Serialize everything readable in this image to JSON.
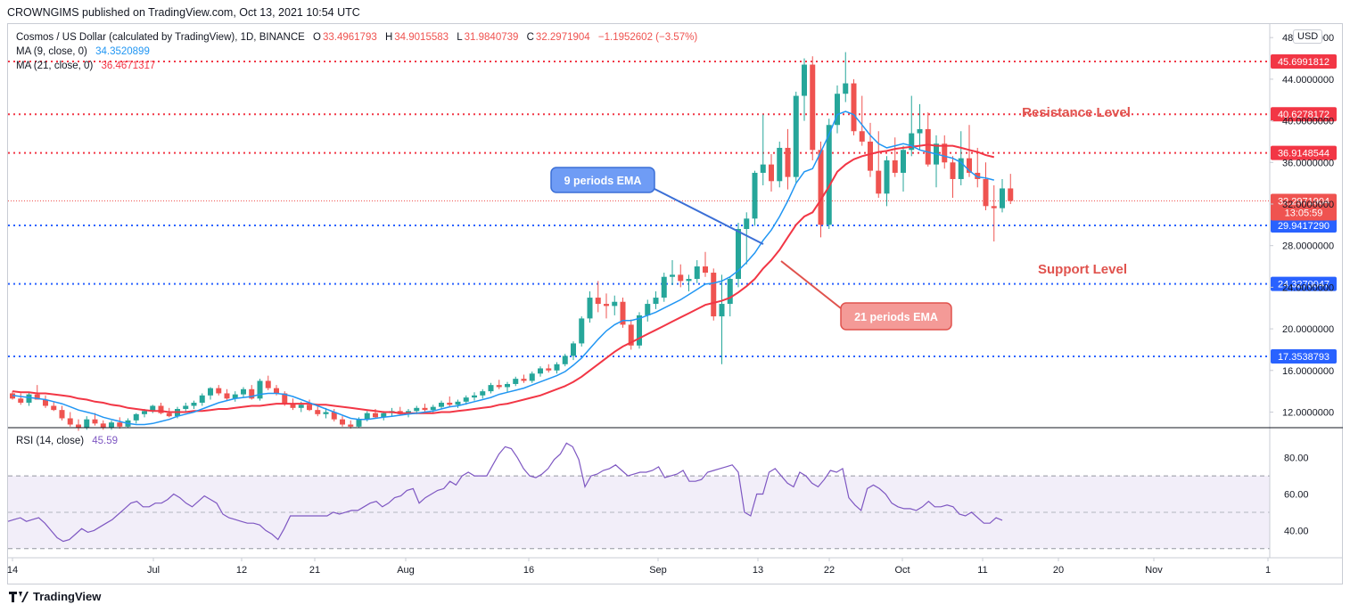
{
  "header": {
    "published": "CROWNGIMS published on TradingView.com, Oct 13, 2021 10:54 UTC"
  },
  "legend": {
    "symbol": "Cosmos / US Dollar (calculated by TradingView), 1D, BINANCE",
    "o_label": "O",
    "o_value": "33.4961793",
    "h_label": "H",
    "h_value": "34.9015583",
    "l_label": "L",
    "l_value": "31.9840739",
    "c_label": "C",
    "c_value": "32.2971904",
    "change": "−1.1952602 (−3.57%)",
    "ma9_label": "MA (9, close, 0)",
    "ma9_value": "34.3520899",
    "ma21_label": "MA (21, close, 0)",
    "ma21_value": "36.4671317",
    "rsi_label": "RSI (14, close)",
    "rsi_value": "45.59"
  },
  "currency": "USD",
  "annotations": {
    "resistance": "Resistance Level",
    "support": "Support Level",
    "ema9": "9 periods EMA",
    "ema21": "21 periods EMA"
  },
  "price_tags": {
    "last": "32.2971904",
    "countdown": "13:05:59"
  },
  "brand": "TradingView",
  "colors": {
    "up": "#26a69a",
    "down": "#ef5350",
    "ma9": "#2196f3",
    "ma21": "#f23645",
    "rsi": "#7e57c2",
    "rsi_band": "#ede7f6",
    "resistance": "#f23645",
    "support": "#2962ff"
  },
  "chart_data": [
    {
      "type": "candlestick",
      "title": "Cosmos / US Dollar (calculated by TradingView), 1D, BINANCE",
      "x_ticks": [
        "14",
        "Jul",
        "12",
        "21",
        "Aug",
        "16",
        "Sep",
        "13",
        "22",
        "Oct",
        "11",
        "20",
        "Nov",
        "1"
      ],
      "y_ticks": [
        "48.0000000",
        "44.0000000",
        "40.0000000",
        "36.0000000",
        "32.0000000",
        "28.0000000",
        "24.0000000",
        "20.0000000",
        "16.0000000",
        "12.0000000"
      ],
      "ylim": [
        10.5,
        49.3
      ],
      "horizontal_levels": [
        {
          "value": 45.6991812,
          "label": "45.6991812",
          "color": "#f23645",
          "style": "dotted"
        },
        {
          "value": 40.6278172,
          "label": "40.6278172",
          "color": "#f23645",
          "style": "dotted"
        },
        {
          "value": 36.9148544,
          "label": "36.9148544",
          "color": "#f23645",
          "style": "dotted"
        },
        {
          "value": 29.941729,
          "label": "29.9417290",
          "color": "#2962ff",
          "style": "dotted"
        },
        {
          "value": 24.3270047,
          "label": "24.3270047",
          "color": "#2962ff",
          "style": "dotted"
        },
        {
          "value": 17.3538793,
          "label": "17.3538793",
          "color": "#2962ff",
          "style": "dotted"
        }
      ],
      "last_price": 32.2971904,
      "candles": [
        [
          13.8,
          14.0,
          13.2,
          13.3
        ],
        [
          13.3,
          13.8,
          12.7,
          12.9
        ],
        [
          12.9,
          13.9,
          12.6,
          13.7
        ],
        [
          13.7,
          14.6,
          13.4,
          13.2
        ],
        [
          13.2,
          13.6,
          12.4,
          12.6
        ],
        [
          12.6,
          13.0,
          12.1,
          12.2
        ],
        [
          12.2,
          12.6,
          11.2,
          11.4
        ],
        [
          11.4,
          12.0,
          10.6,
          10.8
        ],
        [
          10.8,
          11.3,
          10.2,
          10.5
        ],
        [
          10.5,
          11.6,
          10.3,
          11.3
        ],
        [
          11.3,
          11.9,
          10.7,
          10.9
        ],
        [
          10.9,
          11.2,
          10.3,
          10.5
        ],
        [
          10.5,
          11.2,
          10.3,
          11.0
        ],
        [
          11.0,
          11.5,
          10.4,
          10.6
        ],
        [
          10.6,
          11.4,
          10.5,
          11.2
        ],
        [
          11.2,
          11.9,
          10.9,
          11.8
        ],
        [
          11.8,
          12.3,
          11.5,
          12.1
        ],
        [
          12.1,
          12.7,
          11.9,
          12.6
        ],
        [
          12.6,
          12.9,
          11.8,
          11.9
        ],
        [
          11.9,
          12.4,
          11.5,
          11.6
        ],
        [
          11.6,
          12.5,
          11.4,
          12.3
        ],
        [
          12.3,
          12.9,
          12.0,
          12.6
        ],
        [
          12.6,
          13.1,
          12.3,
          12.9
        ],
        [
          12.9,
          13.8,
          12.6,
          13.6
        ],
        [
          13.6,
          14.4,
          13.2,
          14.3
        ],
        [
          14.3,
          14.6,
          13.6,
          13.8
        ],
        [
          13.8,
          14.2,
          13.1,
          13.3
        ],
        [
          13.3,
          14.0,
          13.0,
          13.7
        ],
        [
          13.7,
          14.4,
          13.4,
          14.2
        ],
        [
          14.2,
          14.6,
          13.2,
          13.3
        ],
        [
          13.3,
          15.2,
          13.1,
          15.0
        ],
        [
          15.0,
          15.5,
          14.1,
          14.3
        ],
        [
          14.3,
          14.6,
          13.6,
          13.8
        ],
        [
          13.8,
          14.0,
          12.6,
          12.8
        ],
        [
          12.8,
          13.3,
          12.2,
          12.4
        ],
        [
          12.4,
          13.0,
          12.0,
          12.7
        ],
        [
          12.7,
          13.2,
          12.1,
          12.2
        ],
        [
          12.2,
          12.6,
          11.6,
          11.8
        ],
        [
          11.8,
          12.4,
          11.4,
          12.0
        ],
        [
          12.0,
          12.3,
          11.1,
          11.3
        ],
        [
          11.3,
          11.6,
          10.6,
          10.8
        ],
        [
          10.8,
          11.2,
          10.4,
          10.6
        ],
        [
          10.6,
          11.5,
          10.5,
          11.3
        ],
        [
          11.3,
          12.1,
          11.1,
          11.9
        ],
        [
          11.9,
          12.3,
          11.4,
          11.5
        ],
        [
          11.5,
          12.1,
          11.2,
          11.9
        ],
        [
          11.9,
          12.4,
          11.6,
          12.1
        ],
        [
          12.1,
          12.5,
          11.7,
          11.8
        ],
        [
          11.8,
          12.3,
          11.5,
          12.1
        ],
        [
          12.1,
          12.6,
          11.8,
          12.4
        ],
        [
          12.4,
          12.8,
          12.0,
          12.2
        ],
        [
          12.2,
          12.7,
          11.9,
          12.5
        ],
        [
          12.5,
          13.1,
          12.3,
          12.9
        ],
        [
          12.9,
          13.5,
          12.5,
          12.7
        ],
        [
          12.7,
          13.2,
          12.4,
          13.0
        ],
        [
          13.0,
          13.6,
          12.7,
          13.4
        ],
        [
          13.4,
          13.9,
          13.1,
          13.6
        ],
        [
          13.6,
          14.2,
          13.3,
          14.0
        ],
        [
          14.0,
          14.8,
          13.8,
          14.6
        ],
        [
          14.6,
          15.1,
          14.2,
          14.4
        ],
        [
          14.4,
          14.9,
          13.9,
          14.7
        ],
        [
          14.7,
          15.4,
          14.5,
          15.2
        ],
        [
          15.2,
          15.6,
          14.8,
          15.0
        ],
        [
          15.0,
          15.9,
          14.8,
          15.7
        ],
        [
          15.7,
          16.4,
          15.4,
          16.2
        ],
        [
          16.2,
          16.6,
          15.8,
          16.0
        ],
        [
          16.0,
          16.8,
          15.7,
          16.6
        ],
        [
          16.6,
          17.6,
          16.4,
          17.4
        ],
        [
          17.4,
          18.8,
          17.0,
          18.6
        ],
        [
          18.6,
          21.2,
          18.3,
          21.0
        ],
        [
          21.0,
          23.6,
          20.6,
          23.0
        ],
        [
          23.0,
          24.6,
          21.6,
          22.4
        ],
        [
          22.4,
          23.4,
          21.0,
          22.2
        ],
        [
          22.2,
          23.2,
          21.3,
          22.6
        ],
        [
          22.6,
          23.0,
          20.1,
          20.4
        ],
        [
          20.4,
          20.9,
          18.0,
          18.4
        ],
        [
          18.4,
          21.6,
          18.1,
          21.3
        ],
        [
          21.3,
          22.8,
          20.7,
          22.4
        ],
        [
          22.4,
          23.6,
          21.9,
          23.0
        ],
        [
          23.0,
          25.4,
          22.6,
          25.0
        ],
        [
          25.0,
          26.6,
          24.2,
          25.2
        ],
        [
          25.2,
          26.2,
          24.0,
          24.6
        ],
        [
          24.6,
          25.2,
          23.6,
          24.8
        ],
        [
          24.8,
          26.6,
          24.4,
          26.0
        ],
        [
          26.0,
          27.4,
          25.0,
          25.4
        ],
        [
          25.4,
          25.8,
          20.8,
          21.2
        ],
        [
          21.2,
          25.2,
          16.6,
          22.4
        ],
        [
          22.4,
          25.0,
          21.2,
          24.8
        ],
        [
          24.8,
          30.2,
          24.0,
          29.6
        ],
        [
          29.6,
          31.2,
          26.2,
          30.6
        ],
        [
          30.6,
          35.2,
          29.9,
          35.0
        ],
        [
          35.0,
          40.6,
          33.8,
          35.8
        ],
        [
          35.8,
          36.8,
          33.2,
          34.2
        ],
        [
          34.2,
          38.0,
          33.6,
          37.4
        ],
        [
          37.4,
          39.2,
          33.4,
          34.6
        ],
        [
          34.6,
          42.8,
          34.0,
          42.4
        ],
        [
          42.4,
          46.0,
          40.0,
          45.4
        ],
        [
          45.4,
          46.2,
          36.2,
          37.2
        ],
        [
          37.2,
          38.0,
          28.8,
          30.0
        ],
        [
          30.0,
          40.2,
          29.6,
          39.6
        ],
        [
          39.6,
          43.4,
          38.8,
          42.6
        ],
        [
          42.6,
          46.6,
          41.8,
          43.6
        ],
        [
          43.6,
          44.0,
          38.6,
          39.0
        ],
        [
          39.0,
          42.4,
          37.6,
          38.0
        ],
        [
          38.0,
          39.8,
          34.6,
          35.2
        ],
        [
          35.2,
          39.0,
          32.6,
          33.0
        ],
        [
          33.0,
          36.6,
          31.8,
          36.2
        ],
        [
          36.2,
          38.4,
          34.6,
          35.0
        ],
        [
          35.0,
          37.6,
          33.2,
          37.2
        ],
        [
          37.2,
          42.4,
          36.6,
          38.8
        ],
        [
          38.8,
          41.6,
          37.2,
          39.2
        ],
        [
          39.2,
          40.8,
          35.6,
          35.8
        ],
        [
          35.8,
          38.6,
          33.6,
          37.8
        ],
        [
          37.8,
          38.6,
          35.4,
          36.0
        ],
        [
          36.0,
          36.6,
          32.6,
          34.4
        ],
        [
          34.4,
          39.0,
          33.8,
          36.4
        ],
        [
          36.4,
          39.6,
          34.6,
          35.0
        ],
        [
          35.0,
          37.4,
          33.6,
          34.4
        ],
        [
          34.4,
          36.0,
          31.4,
          31.8
        ],
        [
          31.8,
          33.8,
          28.4,
          31.6
        ],
        [
          31.6,
          34.4,
          31.2,
          33.5
        ],
        [
          33.5,
          34.9,
          32.0,
          32.3
        ]
      ],
      "ma9": [
        13.6,
        13.5,
        13.4,
        13.3,
        13.2,
        13.0,
        12.8,
        12.5,
        12.2,
        12.0,
        11.8,
        11.5,
        11.3,
        11.1,
        10.9,
        10.8,
        10.8,
        10.9,
        11.1,
        11.3,
        11.6,
        11.8,
        12.0,
        12.3,
        12.6,
        12.9,
        13.1,
        13.3,
        13.4,
        13.5,
        13.7,
        13.8,
        13.8,
        13.7,
        13.5,
        13.2,
        12.9,
        12.6,
        12.3,
        12.0,
        11.7,
        11.4,
        11.3,
        11.3,
        11.4,
        11.5,
        11.6,
        11.7,
        11.8,
        11.9,
        12.0,
        12.1,
        12.3,
        12.5,
        12.6,
        12.8,
        13.0,
        13.2,
        13.4,
        13.7,
        13.9,
        14.1,
        14.3,
        14.6,
        14.9,
        15.2,
        15.5,
        15.9,
        16.5,
        17.2,
        18.1,
        19.0,
        19.8,
        20.4,
        20.8,
        20.8,
        21.0,
        21.3,
        21.6,
        22.0,
        22.4,
        22.8,
        23.3,
        23.8,
        24.3,
        24.4,
        24.6,
        25.0,
        25.6,
        26.4,
        27.3,
        28.5,
        29.5,
        30.8,
        32.3,
        34.0,
        35.1,
        35.4,
        37.0,
        38.7,
        40.6,
        40.9,
        40.6,
        39.6,
        38.6,
        37.8,
        37.4,
        37.6,
        37.8,
        37.6,
        37.2,
        37.0,
        36.8,
        36.6,
        36.4,
        36.0,
        35.2,
        34.6,
        34.5,
        34.3
      ],
      "ma21": [
        14.0,
        13.9,
        13.9,
        13.8,
        13.8,
        13.7,
        13.6,
        13.5,
        13.3,
        13.2,
        13.0,
        12.9,
        12.7,
        12.6,
        12.4,
        12.3,
        12.2,
        12.1,
        12.1,
        12.0,
        12.0,
        12.0,
        12.1,
        12.1,
        12.2,
        12.3,
        12.3,
        12.4,
        12.5,
        12.6,
        12.6,
        12.7,
        12.8,
        12.8,
        12.8,
        12.8,
        12.8,
        12.7,
        12.7,
        12.6,
        12.5,
        12.4,
        12.3,
        12.2,
        12.1,
        12.0,
        12.0,
        11.9,
        11.9,
        11.9,
        11.9,
        11.9,
        12.0,
        12.0,
        12.1,
        12.2,
        12.3,
        12.4,
        12.5,
        12.7,
        12.8,
        13.0,
        13.2,
        13.4,
        13.6,
        13.9,
        14.2,
        14.5,
        14.9,
        15.4,
        16.0,
        16.6,
        17.2,
        17.8,
        18.3,
        18.7,
        19.1,
        19.5,
        19.9,
        20.3,
        20.7,
        21.1,
        21.5,
        21.9,
        22.3,
        22.5,
        22.7,
        23.0,
        23.5,
        24.1,
        24.8,
        25.8,
        26.6,
        27.6,
        28.8,
        30.0,
        30.8,
        31.2,
        32.4,
        33.7,
        35.1,
        35.8,
        36.3,
        36.6,
        36.8,
        37.0,
        37.1,
        37.3,
        37.4,
        37.5,
        37.6,
        37.7,
        37.6,
        37.6,
        37.6,
        37.4,
        37.2,
        37.0,
        36.7,
        36.5
      ]
    },
    {
      "type": "line",
      "title": "RSI (14, close)",
      "y_ticks": [
        "80.00",
        "60.00",
        "40.00"
      ],
      "ylim": [
        25,
        96
      ],
      "band": [
        30,
        70
      ],
      "midline": 50,
      "values": [
        45,
        46,
        47,
        45,
        46,
        47,
        44,
        40,
        36,
        34,
        35,
        38,
        41,
        39,
        40,
        42,
        44,
        46,
        49,
        52,
        55,
        56,
        53,
        53,
        55,
        55,
        57,
        60,
        58,
        55,
        53,
        56,
        59,
        57,
        55,
        49,
        47,
        46,
        45,
        44,
        44,
        43,
        40,
        38,
        35,
        41,
        48,
        48,
        48,
        48,
        48,
        48,
        48,
        50,
        49,
        50,
        51,
        51,
        53,
        55,
        56,
        53,
        55,
        58,
        59,
        62,
        63,
        55,
        58,
        60,
        62,
        63,
        67,
        65,
        70,
        72,
        70,
        70,
        70,
        76,
        82,
        86,
        85,
        80,
        74,
        70,
        69,
        71,
        74,
        79,
        82,
        88,
        86,
        79,
        64,
        70,
        71,
        73,
        74,
        76,
        73,
        70,
        71,
        72,
        72,
        73,
        75,
        69,
        70,
        71,
        73,
        67,
        67,
        68,
        72,
        73,
        74,
        75,
        76,
        72,
        50,
        48,
        60,
        60,
        72,
        74,
        70,
        66,
        64,
        72,
        70,
        66,
        64,
        68,
        73,
        72,
        74,
        58,
        54,
        51,
        63,
        65,
        63,
        60,
        55,
        53,
        52,
        52,
        51,
        53,
        56,
        53,
        53,
        54,
        53,
        49,
        48,
        50,
        47,
        44,
        44,
        47,
        45.6
      ]
    }
  ]
}
